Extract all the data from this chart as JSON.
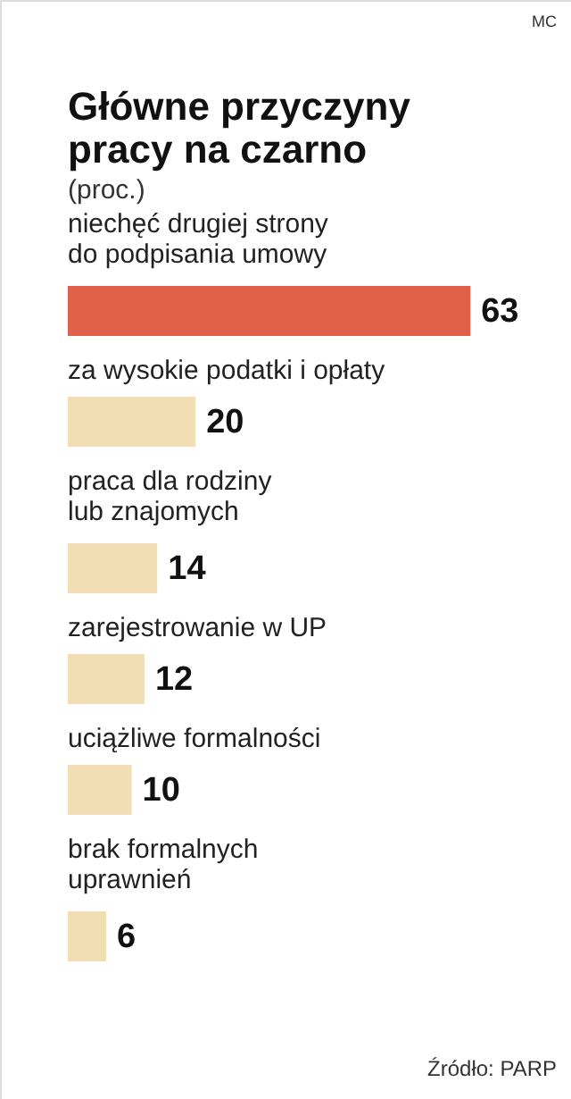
{
  "chart_data": {
    "type": "bar",
    "orientation": "horizontal",
    "title": "Główne przyczyny pracy na czarno",
    "subtitle": "(proc.)",
    "categories": [
      "niechęć drugiej strony\ndo podpisania umowy",
      "za wysokie podatki i opłaty",
      "praca dla rodziny\nlub znajomych",
      "zarejestrowanie w UP",
      "uciążliwe formalności",
      "brak formalnych\nuprawnień"
    ],
    "values": [
      63,
      20,
      14,
      12,
      10,
      6
    ],
    "colors": [
      "#e0604a",
      "#f2deb5",
      "#f2deb5",
      "#f2deb5",
      "#f2deb5",
      "#f2deb5"
    ],
    "data_labels": true,
    "annotations": [
      "MC",
      "Źródło: PARP"
    ]
  }
}
